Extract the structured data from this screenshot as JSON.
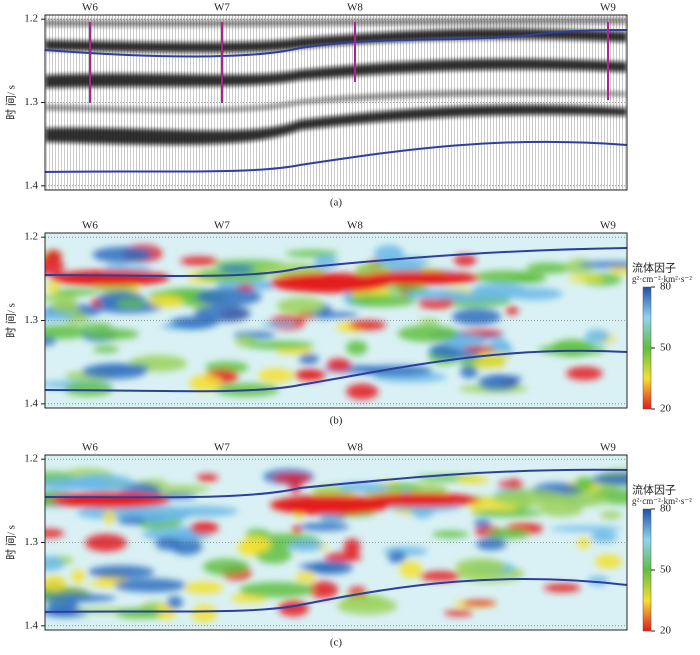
{
  "ylabel": "时 间/ s",
  "ylim": [
    1.195,
    1.405
  ],
  "yticks": [
    1.2,
    1.3,
    1.4
  ],
  "panels": [
    {
      "caption": "(a)",
      "wells": [
        "W6",
        "W7",
        "W8",
        "W9"
      ]
    },
    {
      "caption": "(b)",
      "wells": [
        "W6",
        "W7",
        "W8",
        "W9"
      ]
    },
    {
      "caption": "(c)",
      "wells": [
        "W6",
        "W7",
        "W8",
        "W9"
      ]
    }
  ],
  "colorbar": {
    "title": "流体因子",
    "unit": "g²·cm⁻²·km²·s⁻²",
    "clim": [
      20,
      80
    ],
    "ticks": [
      20,
      50,
      80
    ]
  }
}
